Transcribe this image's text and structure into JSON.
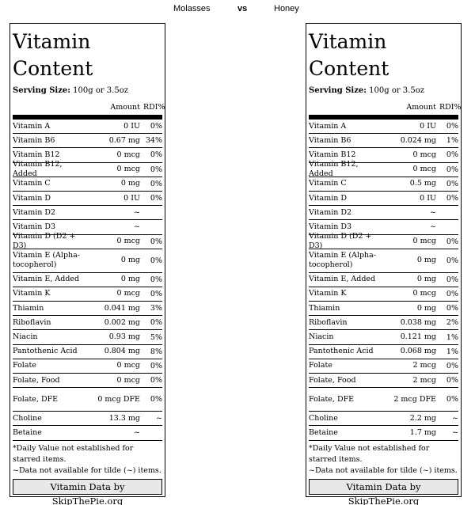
{
  "header": {
    "left": "Molasses",
    "vs": "vs",
    "right": "Honey"
  },
  "panels": [
    {
      "title_line1": "Vitamin",
      "title_line2": "Content",
      "serving_label": "Serving Size:",
      "serving_value": " 100g or 3.5oz",
      "col_amount": "Amount",
      "col_rdi": "RDI%",
      "rows": [
        {
          "name": "Vitamin A",
          "amount": "0 IU",
          "rdi": "0%"
        },
        {
          "name": "Vitamin B6",
          "amount": "0.67 mg",
          "rdi": "34%"
        },
        {
          "name": "Vitamin B12",
          "amount": "0 mcg",
          "rdi": "0%"
        },
        {
          "name": "Vitamin B12, Added",
          "amount": "0 mcg",
          "rdi": "0%"
        },
        {
          "name": "Vitamin C",
          "amount": "0 mg",
          "rdi": "0%"
        },
        {
          "name": "Vitamin D",
          "amount": "0 IU",
          "rdi": "0%"
        },
        {
          "name": "Vitamin D2",
          "amount": "~",
          "rdi": ""
        },
        {
          "name": "Vitamin D3",
          "amount": "~",
          "rdi": ""
        },
        {
          "name": "Vitamin D (D2 + D3)",
          "amount": "0 mcg",
          "rdi": "0%"
        },
        {
          "name": "Vitamin E (Alpha-tocopherol)",
          "amount": "0 mg",
          "rdi": "0%"
        },
        {
          "name": "Vitamin E, Added",
          "amount": "0 mg",
          "rdi": "0%"
        },
        {
          "name": "Vitamin K",
          "amount": "0 mcg",
          "rdi": "0%"
        },
        {
          "name": "Thiamin",
          "amount": "0.041 mg",
          "rdi": "3%"
        },
        {
          "name": "Riboflavin",
          "amount": "0.002 mg",
          "rdi": "0%"
        },
        {
          "name": "Niacin",
          "amount": "0.93 mg",
          "rdi": "5%"
        },
        {
          "name": "Pantothenic Acid",
          "amount": "0.804 mg",
          "rdi": "8%"
        },
        {
          "name": "Folate",
          "amount": "0 mcg",
          "rdi": "0%"
        },
        {
          "name": "Folate, Food",
          "amount": "0 mcg",
          "rdi": "0%"
        },
        {
          "name": "Folate, DFE",
          "amount": "0 mcg DFE",
          "rdi": "0%"
        },
        {
          "name": "Choline",
          "amount": "13.3 mg",
          "rdi": "~"
        },
        {
          "name": "Betaine",
          "amount": "~",
          "rdi": ""
        }
      ],
      "footnote1": "*Daily Value not established for starred items.",
      "footnote2": "~Data not available for tilde (~) items.",
      "credit": "Vitamin Data by SkipThePie.org"
    },
    {
      "title_line1": "Vitamin",
      "title_line2": "Content",
      "serving_label": "Serving Size:",
      "serving_value": " 100g or 3.5oz",
      "col_amount": "Amount",
      "col_rdi": "RDI%",
      "rows": [
        {
          "name": "Vitamin A",
          "amount": "0 IU",
          "rdi": "0%"
        },
        {
          "name": "Vitamin B6",
          "amount": "0.024 mg",
          "rdi": "1%"
        },
        {
          "name": "Vitamin B12",
          "amount": "0 mcg",
          "rdi": "0%"
        },
        {
          "name": "Vitamin B12, Added",
          "amount": "0 mcg",
          "rdi": "0%"
        },
        {
          "name": "Vitamin C",
          "amount": "0.5 mg",
          "rdi": "0%"
        },
        {
          "name": "Vitamin D",
          "amount": "0 IU",
          "rdi": "0%"
        },
        {
          "name": "Vitamin D2",
          "amount": "~",
          "rdi": ""
        },
        {
          "name": "Vitamin D3",
          "amount": "~",
          "rdi": ""
        },
        {
          "name": "Vitamin D (D2 + D3)",
          "amount": "0 mcg",
          "rdi": "0%"
        },
        {
          "name": "Vitamin E (Alpha-tocopherol)",
          "amount": "0 mg",
          "rdi": "0%"
        },
        {
          "name": "Vitamin E, Added",
          "amount": "0 mg",
          "rdi": "0%"
        },
        {
          "name": "Vitamin K",
          "amount": "0 mcg",
          "rdi": "0%"
        },
        {
          "name": "Thiamin",
          "amount": "0 mg",
          "rdi": "0%"
        },
        {
          "name": "Riboflavin",
          "amount": "0.038 mg",
          "rdi": "2%"
        },
        {
          "name": "Niacin",
          "amount": "0.121 mg",
          "rdi": "1%"
        },
        {
          "name": "Pantothenic Acid",
          "amount": "0.068 mg",
          "rdi": "1%"
        },
        {
          "name": "Folate",
          "amount": "2 mcg",
          "rdi": "0%"
        },
        {
          "name": "Folate, Food",
          "amount": "2 mcg",
          "rdi": "0%"
        },
        {
          "name": "Folate, DFE",
          "amount": "2 mcg DFE",
          "rdi": "0%"
        },
        {
          "name": "Choline",
          "amount": "2.2 mg",
          "rdi": "~"
        },
        {
          "name": "Betaine",
          "amount": "1.7 mg",
          "rdi": "~"
        }
      ],
      "footnote1": "*Daily Value not established for starred items.",
      "footnote2": "~Data not available for tilde (~) items.",
      "credit": "Vitamin Data by SkipThePie.org"
    }
  ]
}
